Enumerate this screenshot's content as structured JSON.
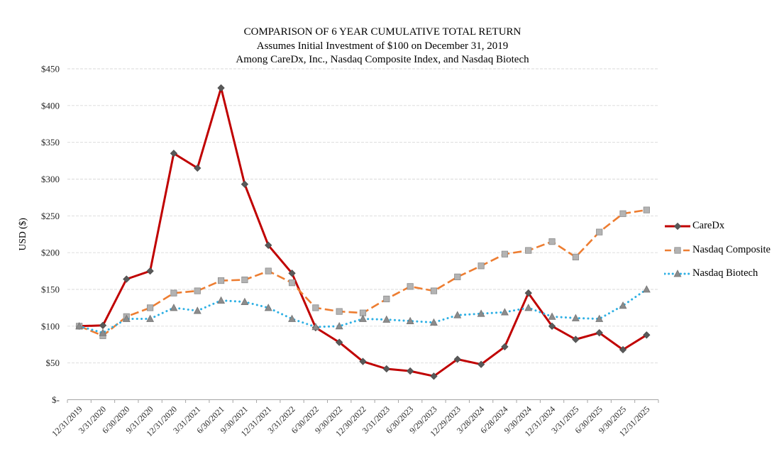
{
  "chart_data": {
    "type": "line",
    "title": "COMPARISON OF 6 YEAR CUMULATIVE TOTAL RETURN",
    "subtitle_lines": [
      "Assumes Initial Investment of $100 on December 31, 2019",
      "Among CareDx, Inc., Nasdaq Composite Index, and Nasdaq Biotech"
    ],
    "categories": [
      "12/31/2019",
      "3/31/2020",
      "6/30/2020",
      "9/31/2020",
      "12/31/2020",
      "3/31/2021",
      "6/30/2021",
      "9/30/2021",
      "12/31/2021",
      "3/31/2022",
      "6/30/2022",
      "9/30/2022",
      "12/30/2022",
      "3/31/2023",
      "6/30/2023",
      "9/29/2023",
      "12/29/2023",
      "3/28/2024",
      "6/28/2024",
      "9/30/2024",
      "12/31/2024",
      "3/31/2025",
      "6/30/2025",
      "9/30/2025",
      "12/31/2025"
    ],
    "series": [
      {
        "name": "CareDx",
        "color": "#C00000",
        "line_style": "solid",
        "marker": "diamond",
        "marker_fill": "#595959",
        "marker_stroke": "#4d4d4d",
        "values": [
          100,
          101,
          164,
          175,
          335,
          315,
          424,
          293,
          210,
          172,
          98,
          78,
          52,
          42,
          39,
          32,
          55,
          48,
          72,
          145,
          100,
          82,
          91,
          68,
          88
        ]
      },
      {
        "name": "Nasdaq Composite",
        "color": "#ED7D31",
        "line_style": "dashed",
        "marker": "square",
        "marker_fill": "#b3b3b3",
        "marker_stroke": "#8c8c8c",
        "values": [
          100,
          87,
          113,
          125,
          145,
          148,
          162,
          163,
          175,
          159,
          125,
          120,
          118,
          137,
          154,
          148,
          167,
          182,
          198,
          203,
          215,
          194,
          228,
          253,
          258
        ]
      },
      {
        "name": "Nasdaq Biotech",
        "color": "#2EB0E4",
        "line_style": "dotted",
        "marker": "triangle",
        "marker_fill": "#8c8c8c",
        "marker_stroke": "#757575",
        "values": [
          100,
          91,
          110,
          110,
          125,
          121,
          135,
          133,
          125,
          110,
          99,
          100,
          110,
          109,
          107,
          105,
          115,
          117,
          119,
          125,
          113,
          111,
          110,
          128,
          150
        ]
      }
    ],
    "ylabel": "USD ($)",
    "ylim": [
      0,
      450
    ],
    "ytick_step": 50,
    "ytick_labels": [
      "$-",
      "$50",
      "$100",
      "$150",
      "$200",
      "$250",
      "$300",
      "$350",
      "$400",
      "$450"
    ],
    "grid": true,
    "legend_position": "right",
    "axis_color": "#A6A6A6",
    "grid_color": "#D9D9D9",
    "tick_label_color": "#262626"
  }
}
